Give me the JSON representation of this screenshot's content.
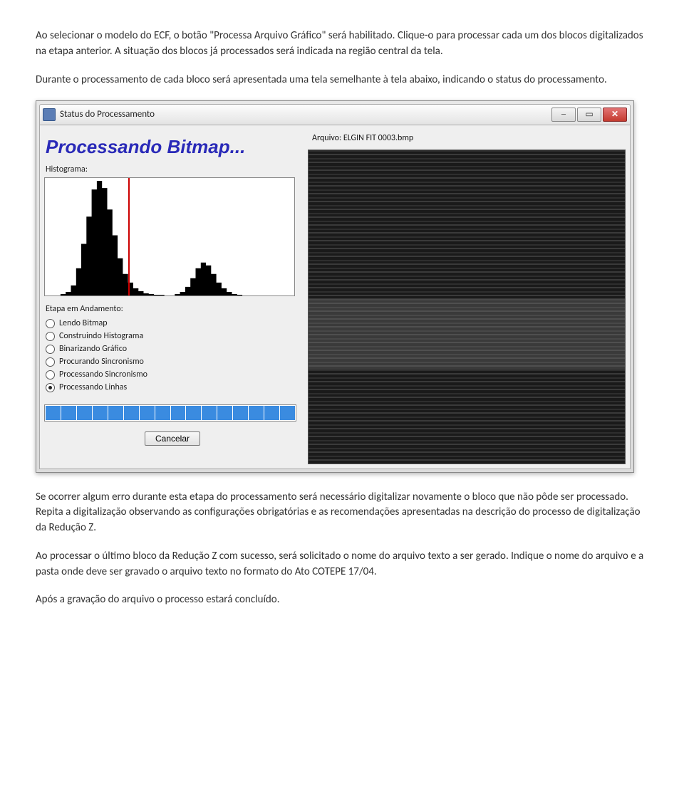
{
  "para1": "Ao selecionar o modelo do ECF, o botão \"Processa Arquivo Gráfico\" será habilitado. Clique-o para processar cada um dos blocos digitalizados na etapa anterior. A situação dos blocos já processados será indicada na região central da tela.",
  "para2": "Durante o processamento de cada bloco será apresentada uma tela semelhante à tela abaixo, indicando o status do processamento.",
  "window": {
    "title": "Status do Processamento",
    "heading": "Processando Bitmap...",
    "histogram_label": "Histograma:",
    "histogram": {
      "values": [
        0,
        0,
        0,
        2,
        5,
        14,
        38,
        72,
        110,
        148,
        160,
        150,
        120,
        84,
        52,
        30,
        18,
        10,
        6,
        3,
        2,
        1,
        1,
        0,
        0,
        2,
        5,
        12,
        24,
        38,
        46,
        42,
        30,
        18,
        10,
        5,
        2,
        1,
        0,
        0,
        0,
        0,
        0,
        0,
        0,
        0,
        0,
        0
      ],
      "threshold_index": 16,
      "bg_color": "#ffffff",
      "fill_color": "#000000",
      "line_color": "#cc0000"
    },
    "stage_label": "Etapa em Andamento:",
    "stages": [
      {
        "label": "Lendo Bitmap",
        "selected": false
      },
      {
        "label": "Construindo Histograma",
        "selected": false
      },
      {
        "label": "Binarizando Gráfico",
        "selected": false
      },
      {
        "label": "Procurando Sincronismo",
        "selected": false
      },
      {
        "label": "Processando Sincronismo",
        "selected": false
      },
      {
        "label": "Processando Linhas",
        "selected": true
      }
    ],
    "progress_cells": 16,
    "progress_color": "#3a8be0",
    "cancel_label": "Cancelar",
    "arquivo_prefix": "Arquivo:  ",
    "arquivo_name": "ELGIN FIT 0003.bmp"
  },
  "para3": "Se ocorrer algum erro durante esta etapa do processamento será necessário digitalizar novamente o bloco que não pôde ser processado. Repita a digitalização observando as configurações obrigatórias e as recomendações apresentadas na descrição do processo de digitalização da Redução Z.",
  "para4": "Ao processar o último bloco da Redução Z com sucesso, será solicitado o nome do arquivo texto a ser gerado. Indique o nome do arquivo e a pasta onde deve ser gravado o arquivo texto no formato do Ato COTEPE 17/04.",
  "para5": "Após a gravação do arquivo o processo estará concluído."
}
